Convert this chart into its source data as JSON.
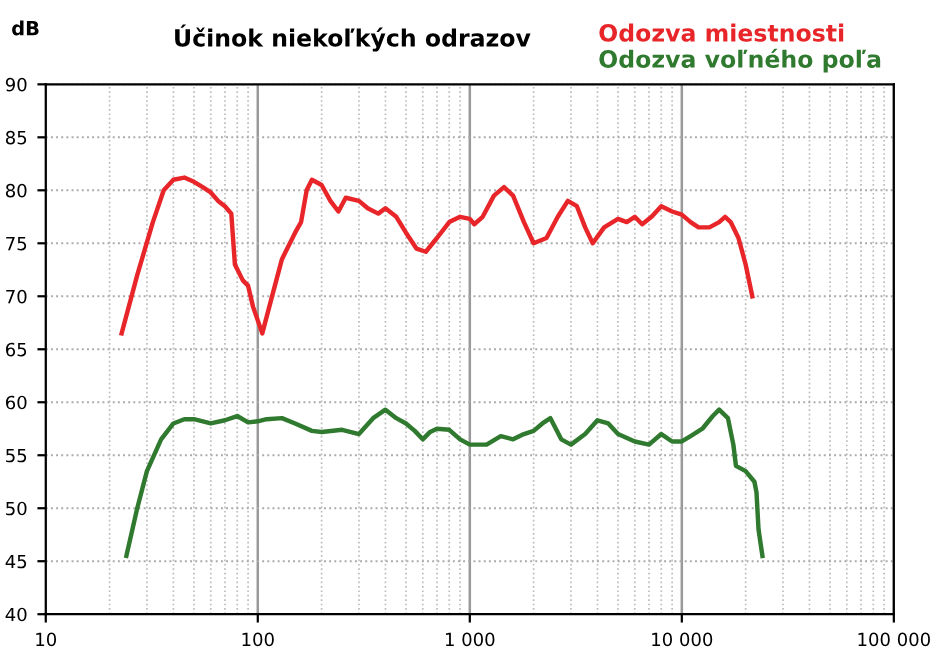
{
  "chart_data": {
    "type": "line",
    "title": "Účinok niekoľkých odrazov",
    "ylabel": "dB",
    "log": "x",
    "grid": true,
    "legend": "top right",
    "marker": "none",
    "line_style": "solid",
    "xlim": [
      10,
      100000
    ],
    "xticks": [
      10,
      100,
      {
        "value": 1000,
        "label": "1 000"
      },
      {
        "value": 10000,
        "label": "10 000"
      },
      {
        "value": 100000,
        "label": "100 000"
      }
    ],
    "ylim": [
      40,
      90
    ],
    "yticks": [
      40,
      45,
      50,
      55,
      60,
      65,
      70,
      75,
      80,
      85,
      90
    ],
    "series": [
      {
        "name": "Odozva miestnosti",
        "color": "#e8262a",
        "x": [
          22.8,
          27,
          32,
          36,
          40,
          45,
          50,
          55,
          60,
          65,
          70,
          75,
          78,
          85,
          90,
          95,
          105,
          115,
          130,
          150,
          160,
          170,
          180,
          200,
          220,
          240,
          260,
          300,
          330,
          370,
          400,
          450,
          500,
          560,
          620,
          700,
          800,
          900,
          1000,
          1050,
          1150,
          1300,
          1450,
          1600,
          1800,
          2000,
          2300,
          2600,
          2900,
          3200,
          3500,
          3800,
          4300,
          5000,
          5500,
          6000,
          6500,
          7200,
          8000,
          9000,
          10000,
          11000,
          12000,
          13500,
          15000,
          16000,
          17000,
          18500,
          20000,
          21500
        ],
        "values": [
          66.5,
          72,
          77,
          80,
          81,
          81.2,
          80.8,
          80.3,
          79.8,
          79,
          78.5,
          77.8,
          73,
          71.5,
          71,
          69,
          66.5,
          69.5,
          73.5,
          76,
          77,
          80,
          81,
          80.5,
          79,
          78,
          79.3,
          79,
          78.3,
          77.8,
          78.3,
          77.5,
          76,
          74.5,
          74.2,
          75.5,
          77,
          77.5,
          77.3,
          76.8,
          77.5,
          79.5,
          80.3,
          79.5,
          77,
          75,
          75.5,
          77.5,
          79,
          78.5,
          76.5,
          75,
          76.5,
          77.3,
          77,
          77.5,
          76.8,
          77.5,
          78.5,
          78,
          77.7,
          77,
          76.5,
          76.5,
          77,
          77.5,
          77,
          75.5,
          73,
          70
        ]
      },
      {
        "name": "Odozva voľného poľa",
        "color": "#2f7a2f",
        "x": [
          24,
          27,
          30,
          35,
          40,
          45,
          50,
          60,
          70,
          80,
          90,
          100,
          110,
          130,
          150,
          180,
          200,
          250,
          300,
          350,
          400,
          450,
          500,
          550,
          600,
          650,
          700,
          800,
          900,
          1000,
          1200,
          1400,
          1600,
          1800,
          2000,
          2200,
          2400,
          2700,
          3000,
          3500,
          4000,
          4500,
          5000,
          6000,
          7000,
          8000,
          9000,
          10000,
          11000,
          12500,
          14000,
          15000,
          16500,
          17500,
          18000,
          20000,
          22000,
          22500,
          23000,
          24000
        ],
        "values": [
          45.5,
          50,
          53.5,
          56.5,
          58,
          58.4,
          58.4,
          58,
          58.3,
          58.7,
          58.1,
          58.2,
          58.4,
          58.5,
          58,
          57.3,
          57.2,
          57.4,
          57,
          58.5,
          59.3,
          58.5,
          58,
          57.3,
          56.5,
          57.2,
          57.5,
          57.4,
          56.5,
          56,
          56,
          56.8,
          56.5,
          57,
          57.3,
          58,
          58.5,
          56.5,
          56,
          57,
          58.3,
          58,
          57,
          56.3,
          56,
          57,
          56.3,
          56.3,
          56.8,
          57.5,
          58.7,
          59.3,
          58.5,
          56,
          54,
          53.5,
          52.5,
          51.5,
          48,
          45.5
        ]
      }
    ]
  }
}
